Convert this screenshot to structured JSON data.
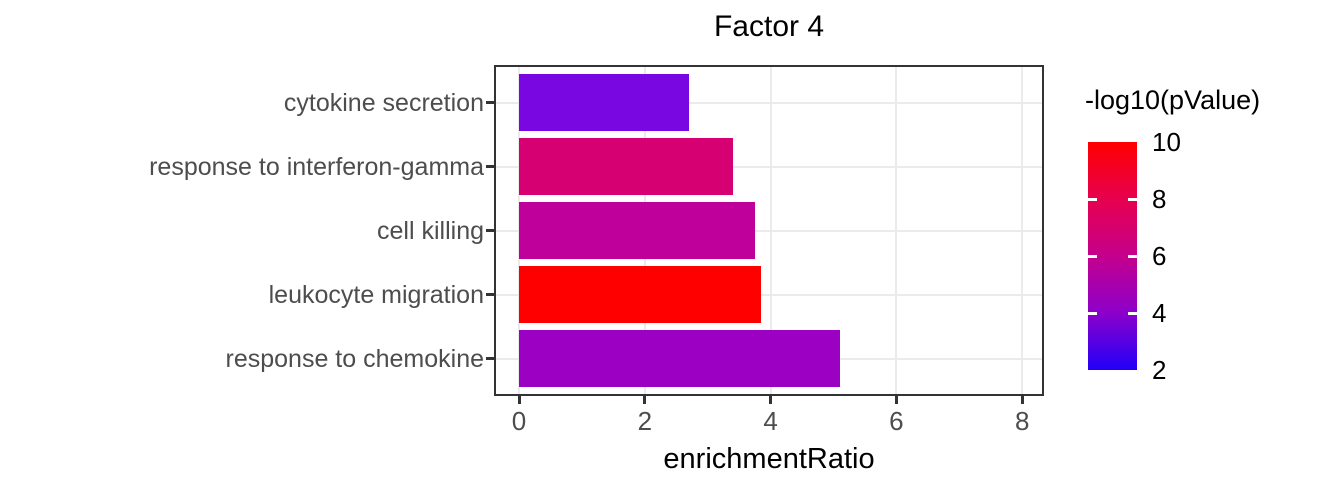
{
  "title": "Factor 4",
  "chart_data": {
    "type": "bar",
    "orientation": "horizontal",
    "title": "Factor 4",
    "xlabel": "enrichmentRatio",
    "ylabel": "",
    "xlim": [
      0,
      8.3
    ],
    "x_ticks": [
      0,
      2,
      4,
      6,
      8
    ],
    "grid": true,
    "categories": [
      "cytokine secretion",
      "response to interferon-gamma",
      "cell killing",
      "leukocyte migration",
      "response to chemokine"
    ],
    "values": [
      2.7,
      3.4,
      3.75,
      3.85,
      5.1
    ],
    "bar_colors": [
      "#7807E1",
      "#D70072",
      "#C0009B",
      "#FF0000",
      "#9B00C3"
    ],
    "color_variable": "-log10(pValue)",
    "neg_log10_pvalue_estimated_from_color": [
      3.7,
      6.8,
      5.8,
      10,
      4.3
    ],
    "legend": {
      "title": "-log10(pValue)",
      "position": "right",
      "type": "colorbar",
      "range": [
        2,
        10
      ],
      "ticks": [
        10,
        8,
        6,
        4,
        2
      ],
      "tick_labels": [
        "10",
        "8",
        "6",
        "4",
        "2"
      ],
      "inner_tick_values": [
        8,
        6,
        4
      ],
      "gradient_stops": [
        {
          "value": 2,
          "color": "#2100F8"
        },
        {
          "value": 4,
          "color": "#8D00CB"
        },
        {
          "value": 6,
          "color": "#C4008C"
        },
        {
          "value": 8,
          "color": "#E7004E"
        },
        {
          "value": 10,
          "color": "#FF0000"
        }
      ]
    }
  },
  "colors": {
    "panel_border": "#333333",
    "gridline": "#ebebeb",
    "axis_text": "#4d4d4d",
    "title_text": "#000000",
    "tick_mark": "#333333",
    "background": "#ffffff"
  }
}
